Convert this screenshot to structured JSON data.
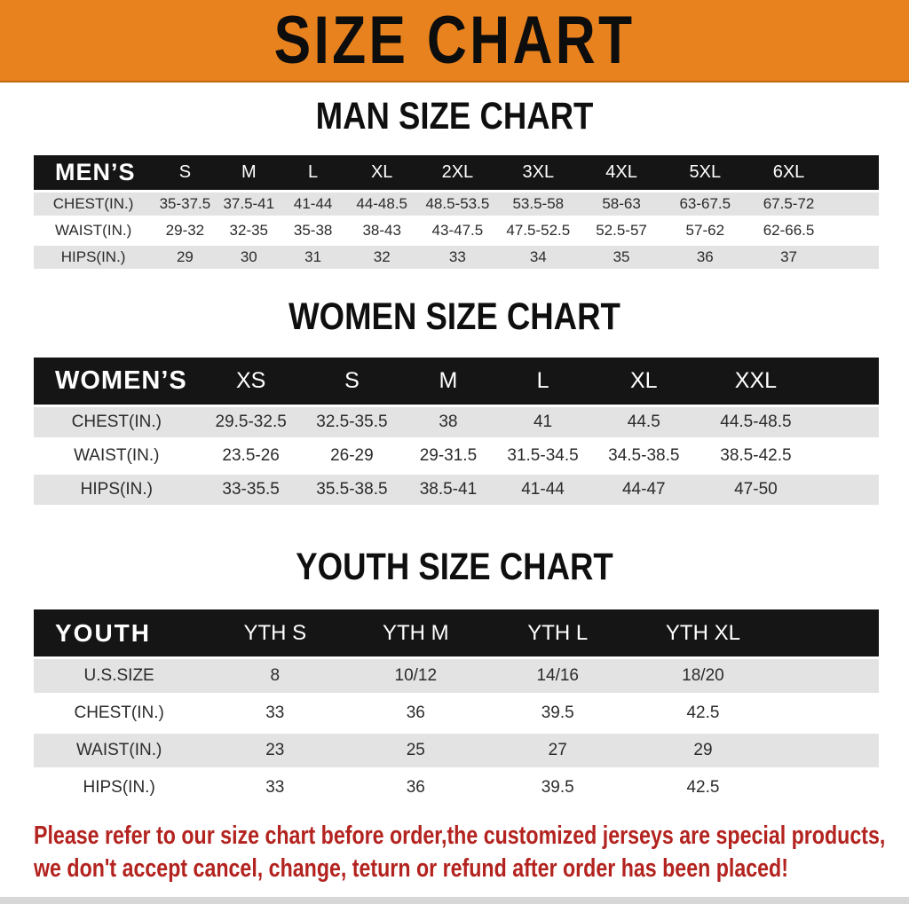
{
  "colors": {
    "banner": "#E8821E",
    "banner_edge": "#C06A10",
    "header_bar": "#151515",
    "stripe": "#E4E3E3",
    "footer_text": "#B3231F"
  },
  "banner": {
    "title": "SIZE CHART"
  },
  "sections": [
    {
      "id": "men",
      "heading": "MAN SIZE CHART",
      "table": {
        "label": "MEN’S",
        "columns": [
          "S",
          "M",
          "L",
          "XL",
          "2XL",
          "3XL",
          "4XL",
          "5XL",
          "6XL"
        ],
        "rows": [
          {
            "label": "CHEST(IN.)",
            "values": [
              "35-37.5",
              "37.5-41",
              "41-44",
              "44-48.5",
              "48.5-53.5",
              "53.5-58",
              "58-63",
              "63-67.5",
              "67.5-72"
            ]
          },
          {
            "label": "WAIST(IN.)",
            "values": [
              "29-32",
              "32-35",
              "35-38",
              "38-43",
              "43-47.5",
              "47.5-52.5",
              "52.5-57",
              "57-62",
              "62-66.5"
            ]
          },
          {
            "label": "HIPS(IN.)",
            "values": [
              "29",
              "30",
              "31",
              "32",
              "33",
              "34",
              "35",
              "36",
              "37"
            ]
          }
        ]
      }
    },
    {
      "id": "women",
      "heading": "WOMEN SIZE CHART",
      "table": {
        "label": "WOMEN’S",
        "columns": [
          "XS",
          "S",
          "M",
          "L",
          "XL",
          "XXL"
        ],
        "rows": [
          {
            "label": "CHEST(IN.)",
            "values": [
              "29.5-32.5",
              "32.5-35.5",
              "38",
              "41",
              "44.5",
              "44.5-48.5"
            ]
          },
          {
            "label": "WAIST(IN.)",
            "values": [
              "23.5-26",
              "26-29",
              "29-31.5",
              "31.5-34.5",
              "34.5-38.5",
              "38.5-42.5"
            ]
          },
          {
            "label": "HIPS(IN.)",
            "values": [
              "33-35.5",
              "35.5-38.5",
              "38.5-41",
              "41-44",
              "44-47",
              "47-50"
            ]
          }
        ]
      }
    },
    {
      "id": "youth",
      "heading": "YOUTH SIZE CHART",
      "table": {
        "label": "YOUTH",
        "columns": [
          "YTH S",
          "YTH M",
          "YTH L",
          "YTH XL"
        ],
        "rows": [
          {
            "label": "U.S.SIZE",
            "values": [
              "8",
              "10/12",
              "14/16",
              "18/20"
            ]
          },
          {
            "label": "CHEST(IN.)",
            "values": [
              "33",
              "36",
              "39.5",
              "42.5"
            ]
          },
          {
            "label": "WAIST(IN.)",
            "values": [
              "23",
              "25",
              "27",
              "29"
            ]
          },
          {
            "label": "HIPS(IN.)",
            "values": [
              "33",
              "36",
              "39.5",
              "42.5"
            ]
          }
        ]
      }
    }
  ],
  "footer": {
    "lines": [
      "Please refer to our size chart before order,the customized jerseys are special products,",
      "we don't accept cancel, change, teturn or refund after order has been placed!"
    ]
  }
}
